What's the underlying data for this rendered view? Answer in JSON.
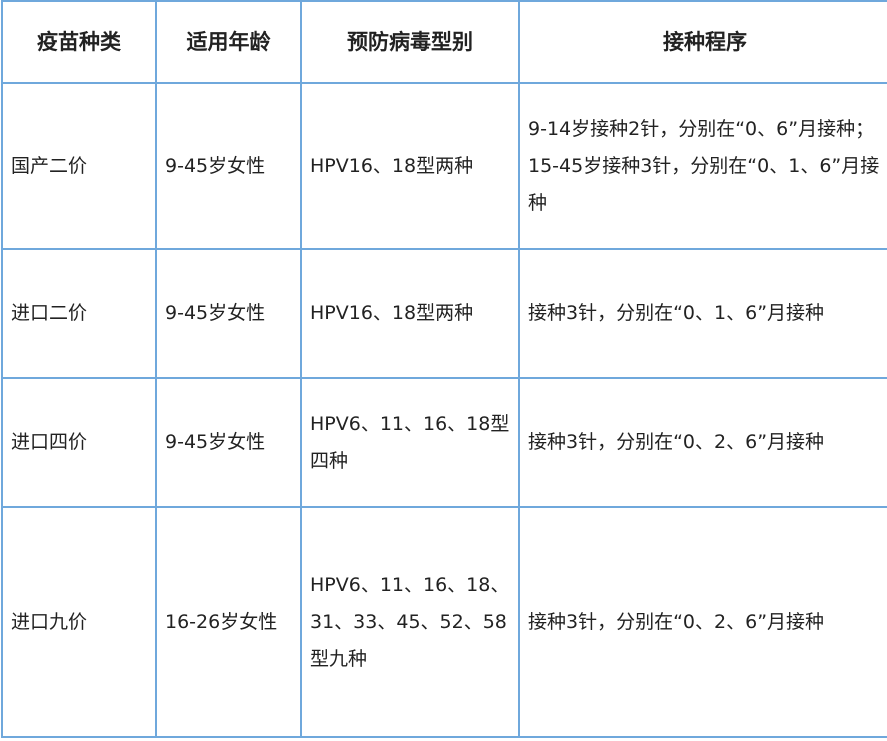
{
  "table": {
    "headers": [
      "疫苗种类",
      "适用年龄",
      "预防病毒型别",
      "接种程序"
    ],
    "rows": [
      [
        "国产二价",
        "9-45岁女性",
        "HPV16、18型两种",
        "9-14岁接种2针，分别在“0、6”月接种；15-45岁接种3针，分别在“0、1、6”月接种"
      ],
      [
        "进口二价",
        "9-45岁女性",
        "HPV16、18型两种",
        "接种3针，分别在“0、1、6”月接种"
      ],
      [
        "进口四价",
        "9-45岁女性",
        "HPV6、11、16、18型四种",
        "接种3针，分别在“0、2、6”月接种"
      ],
      [
        "进口九价",
        "16-26岁女性",
        "HPV6、11、16、18、31、33、45、52、58型九种",
        "接种3针，分别在“0、2、6”月接种"
      ]
    ]
  }
}
